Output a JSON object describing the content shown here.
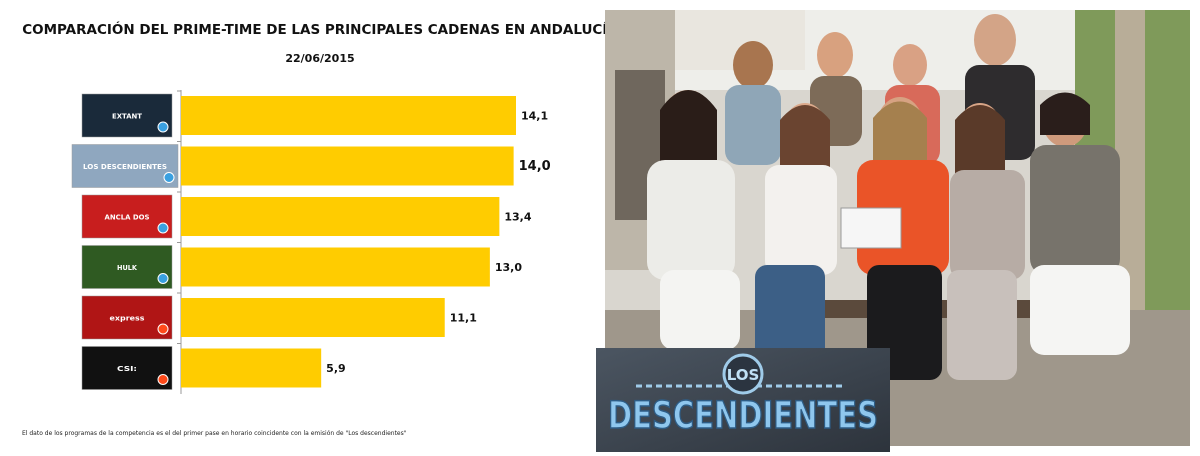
{
  "chart_data": {
    "type": "bar",
    "orientation": "horizontal",
    "title": "COMPARACIÓN DEL PRIME-TIME DE LAS PRINCIPALES CADENAS EN ANDALUCÍA",
    "subtitle": "22/06/2015",
    "categories": [
      "EXTANT",
      "LOS DESCENDIENTES",
      "ANCLA DOS",
      "HULK",
      "SUPERVIVIENTES EXPRESS",
      "CSI"
    ],
    "values": [
      14.1,
      14.0,
      13.4,
      13.0,
      11.1,
      5.9
    ],
    "value_labels": [
      "14,1",
      "14,0",
      "13,4",
      "13,0",
      "11,1",
      "5,9"
    ],
    "xlim": [
      0,
      16
    ],
    "bar_color": "#FFCC00",
    "grid": false,
    "legend": "none"
  },
  "logos": [
    {
      "text": "EXTANT",
      "channel_icon": "channel-icon",
      "color": "#1a2a3a"
    },
    {
      "text": "LOS DESCENDIENTES",
      "channel_icon": "channel-icon",
      "color": "#8fa7bf"
    },
    {
      "text": "ANCLA DOS",
      "channel_icon": "channel-icon",
      "color": "#c81e1e"
    },
    {
      "text": "HULK",
      "channel_icon": "channel-icon",
      "color": "#2f5a22"
    },
    {
      "text": "express",
      "channel_icon": "antena3-icon",
      "color": "#b01515"
    },
    {
      "text": "CSI:",
      "channel_icon": "antena3-icon",
      "color": "#111111"
    }
  ],
  "footnote": "El dato de los programas de la competencia es el del primer pase en horario coincidente con la emisión de \"Los descendientes\"",
  "show_logo": {
    "top": "LOS",
    "main": "DESCENDIENTES"
  },
  "colors": {
    "accent": "#FFCC00",
    "logo_blue": "#5aa9e6"
  }
}
